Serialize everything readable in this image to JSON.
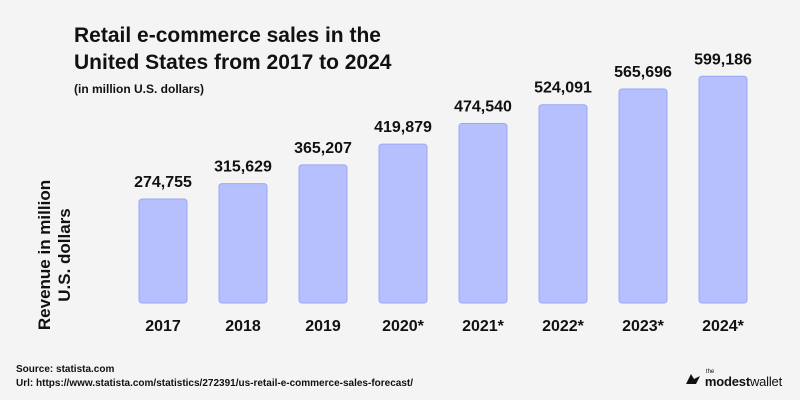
{
  "chart_data": {
    "type": "bar",
    "title": "Retail e-commerce sales in the United States from 2017 to 2024",
    "subtitle": "(in million U.S. dollars)",
    "ylabel": "Revenue in million U.S. dollars",
    "xlabel": "",
    "categories": [
      "2017",
      "2018",
      "2019",
      "2020*",
      "2021*",
      "2022*",
      "2023*",
      "2024*"
    ],
    "values": [
      274755,
      315629,
      365207,
      419879,
      474540,
      524091,
      565696,
      599186
    ],
    "value_labels": [
      "274,755",
      "315,629",
      "365,207",
      "419,879",
      "474,540",
      "524,091",
      "565,696",
      "599,186"
    ],
    "ylim": [
      0,
      600000
    ],
    "grid": false,
    "legend": "none",
    "colors": {
      "bar_fill": "#b6c0ff",
      "bar_stroke": "#9aa6f5",
      "background": "#f4f4f4",
      "text": "#111111"
    }
  },
  "source": {
    "line1": "Source: statista.com",
    "line2": "Url: https://www.statista.com/statistics/272391/us-retail-e-commerce-sales-forecast/"
  },
  "logo": {
    "the": "the",
    "brand_bold": "modest",
    "brand_light": "wallet",
    "icon": "bird-logo-icon"
  }
}
